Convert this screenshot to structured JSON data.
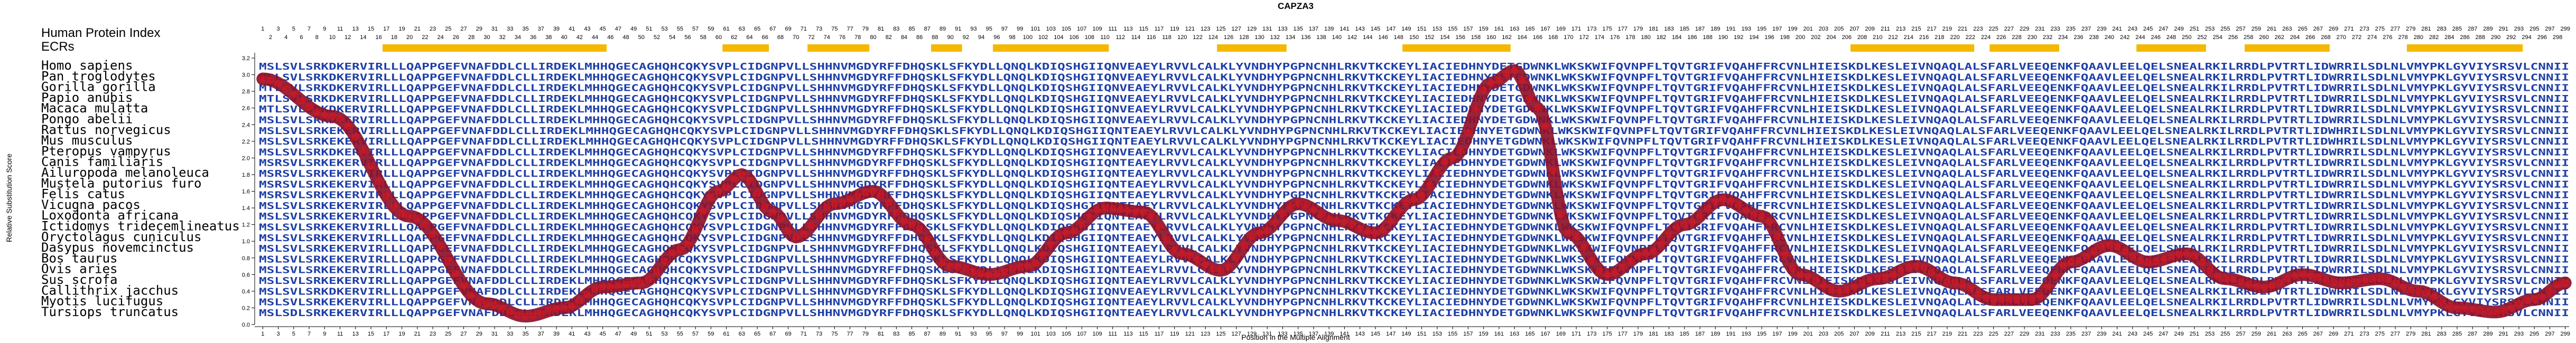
{
  "chart_data": {
    "type": "line",
    "title": "CAPZA3",
    "xlabel": "Position in the Multiple Alignment",
    "ylabel": "Relative Substitution Score",
    "ylim": [
      0,
      3.2
    ],
    "yticks": [
      0,
      0.2,
      0.4,
      0.6,
      0.8,
      1.0,
      1.2,
      1.4,
      1.6,
      1.8,
      2.0,
      2.2,
      2.4,
      2.6,
      2.8,
      3.0,
      3.2
    ],
    "xlim": [
      1,
      299
    ],
    "index_label": "Human Protein Index",
    "ecr_label": "ECRs",
    "ecr_color": "#f5b800",
    "line_color": "#8e1129",
    "marker_color": "#e8141c",
    "residue_color": "#1f3fa8",
    "ecrs": [
      [
        17,
        45
      ],
      [
        61,
        66
      ],
      [
        72,
        79
      ],
      [
        88,
        91
      ],
      [
        96,
        110
      ],
      [
        125,
        133
      ],
      [
        149,
        162
      ],
      [
        207,
        222
      ],
      [
        225,
        233
      ],
      [
        244,
        252
      ],
      [
        258,
        268
      ],
      [
        279,
        293
      ]
    ],
    "x": [
      1,
      10,
      20,
      30,
      35,
      40,
      45,
      50,
      55,
      60,
      63,
      67,
      70,
      75,
      80,
      85,
      90,
      95,
      100,
      105,
      110,
      115,
      120,
      125,
      130,
      135,
      140,
      145,
      150,
      155,
      160,
      163,
      166,
      170,
      175,
      180,
      185,
      190,
      195,
      200,
      205,
      210,
      215,
      220,
      225,
      230,
      235,
      240,
      245,
      250,
      255,
      260,
      265,
      270,
      275,
      280,
      285,
      290,
      295,
      299
    ],
    "values": [
      2.95,
      2.5,
      1.3,
      0.25,
      0.1,
      0.2,
      0.45,
      0.5,
      0.9,
      1.6,
      1.8,
      1.35,
      1.05,
      1.45,
      1.6,
      1.2,
      0.7,
      0.6,
      0.7,
      1.1,
      1.4,
      1.35,
      0.85,
      0.65,
      1.1,
      1.45,
      1.25,
      1.1,
      1.5,
      2.0,
      2.9,
      3.05,
      2.6,
      1.1,
      0.6,
      0.85,
      1.2,
      1.5,
      1.3,
      0.6,
      0.4,
      0.55,
      0.7,
      0.5,
      0.3,
      0.3,
      0.75,
      0.95,
      0.75,
      0.85,
      0.55,
      0.45,
      0.6,
      0.5,
      0.55,
      0.4,
      0.2,
      0.15,
      0.3,
      0.5
    ],
    "species": [
      "Homo sapiens",
      "Pan troglodytes",
      "Gorilla gorilla",
      "Papio anubis",
      "Macaca mulatta",
      "Pongo abelii",
      "Rattus norvegicus",
      "Mus musculus",
      "Pteropus vampyrus",
      "Canis familiaris",
      "Ailuropoda melanoleuca",
      "Mustela putorius furo",
      "Felis catus",
      "Vicugna pacos",
      "Loxodonta africana",
      "Ictidomys tridecemlineatus",
      "Oryctolagus cuniculus",
      "Dasypus novemcinctus",
      "Bos taurus",
      "Ovis aries",
      "Sus scrofa",
      "Callithrix jacchus",
      "Myotis lucifugus",
      "Tursiops truncatus"
    ],
    "sequence_rows": [
      "MSLSVLSRKDKERVIRLLLQAPPGEFVNAFDDLCLLIRDEKLMHHQGECAGHQHCQKYSVPLCIDGNPVLLSHHNVMGDYRFFDHQSKLSFKYDLLQNQLKDIQSHGIIQNVEAEYLRVVLCALKLYVNDHYPGPNCNHLRKVTKCKEYLIACIEDHNYDETGDWNKLWKSKWIFQVNPFLTQVTGRIFVQAHFFRCVNLHIEISKDLKESLEIVNQAQLALSFARLVEEQENKFQAAVLEELQELSNEALRKILRRDLPVTRTLIDWRRILSDLNLVMYPKLGYVIYSRSVLCNNII",
      "MSLSVLSRKDKERVIRLLLQAPPGEFVNAFDDLCLLIRDEKLMHHQGECAGHQHCQKYSVPLCIDGNPVLLSHHNVMGDYRFFDHQSKLSFKYDLLQNQLKDIQSHGIIQNVEAEYLRVVLCALKLYVNDHYPGPNCNHLRKVTKCKEYLIACIEDHNYDETGDWNKLWKSKWIFQVNPFLTQVTGRIFVQAHFFRCVNLHIEISKDLKESLEIVNQAQLALSFARLVEEQENKFQAAVLEELQELSNEALRKILRRDLPVTRTLIDWRRILSDLNLVMYPKLGYVIYSRSVLCNNII",
      "MTLSVLSRKDKERVIRLLLQAPPGEFVNAFDDLCLLIRDEKLMHHQGECAGHQHCQKYSVPLCIDGNPVLLSHHNVMGDYRFFDHQSKLSFKYDLLQNQLKDIQSHGIIQNVEAEYLRVVLCALKLYVNDHYPGPNCNHLRKVTKCKEYLIACIEDHNYDETGDWNKLWKSKWIFQVNPFLTQVTGRIFVQAHFFRCVNLHIEISKDLKESLEIVNQAQLALSFARLVEEQENKFQAAVLEELQELSNEALRKILRRDLPVTRTLIDWRRILSDLNLVMYPKLGYVIYSRSVLCNNII",
      "MTLSVLSRKDKERVIRLLLQAPPGEFVNAFDDLCLLIRDEKLMHHQGECAGHQHCQKYSVPLCIDGNPVLLSHHNVMGDYRFFDHQSKLSFKYDLLQNQLKDIQSHGIIQNVEAEYLRVVLCALKLYVNDHYPGPNCNHLRKVTKCKEYLIACIEDHNYDETGDWNKLWKSKWIFQVNPFLTQVTGRIFVQAHFFRCVNLHIEISKDLKESLEIVNQAQLALSFARLVEEQENKFQAAVLEELQELSNEALRKILRRDLPVTRTLIDWRRILSDLNLVMYPKLGYVIYSRSVLCNNII",
      "MTLSVLSRKDKERVIRLLLQAPPGEFVNAFDDLCLLIRDEKLMHHQGECAGHQHCQKYSVPLCIDGNPVLLSHHNVMGDYRFFDHQSKLSFKYDLLQNQLKDIQSHGIIQNVEAEYLRVVLCALKLYVNDHYPGPNCNHLRKVTKCKEYLIACIEDHNYDETGDWNKLWKSKWIFQVNPFLTQVTGRIFVQAHFFRCVNLHIEISKDLKESLEIVNQAQLALSFARLVEEQENKFQAAVLEELQELSNEALRKILRRDLPVTRTLIDWRRILSDLNLVMYPKLGYVIYSRSVLCNNII",
      "MSLSVLSRKDKERVIRLLLQAPPGEFVNAFDDLCLLIRDEKLMHHQGECAGHQHCQKYSVPLCIDGNPVLLSHHNVMGDYRFFDHQSKLSFKYDLLQNQLKDIQSHGIIQNVEAEYLRVVLCALKLYVNDHYPGPNCNHLRKVTKCKEYLIACIEDHNYDETGDWNKLWKSKWIFQVNPFLTQVTGRIFVQAHFFRCVNLHIEISKDLKESLEIVNQAQLALSFARLVEEQENKFQAAVLEELQELSNEALRKILRRDLPVTRTLIDWRRILSDLNLVMYPKLGYVIYSRSVLCNNII",
      "MSLSVLSRKEKERVIRLLLQAPPGEFVNAFDDLCLLIRDEKLMHHQGECAGHQHCQKYSVPLCIDGNPVLLSHHNVMGDYRFFDHQSKLSFKYDLLQNQLKDIQSHGIIQNTEAEYLRVVLCALKLYVNDHYPGPNCNHLRKVTKCKEYLIACIEDHNYETGDWNKLWKSKWIFQVNPFLTQVTGRIFVQAHFFRCVNLHIEISKDLKESLEIVNQAQLALSFARLVEEQENKFQAAVLEELQELSNEALRKILRRDLPVTRTLIDWHRILSDLNLVMYPKLGYVIYSRSVLCNNII",
      "MSLSVLSRKEKERVIRLLLQAPPGEFVNAFDDLCLLIRDEKLMHHQGECAGHQHCQKYSVPLCIDGNPVLLSHHNVMGDYRFFDHQSKLSFKYDLLQNQLKDIQSHGIIQNTEAEYLRVVLCALKLYVNDHYPGPNCNHLRKVTKCKEYLIACIEDHNYETGDWNKLWKSKWIFQVNPFLTQVTGRIFVQAHFFRCVNLHIEISKDLKESLEIVNQAQLALSFARLVEEQENKFQAAVLEELQELSNEALRKILRRDLPVTRTLIDWHRILSDLNLVMYPKLGYVIYSRSVLCNNII",
      "MSLSVLSRKDKERVIRLLLQAPPGEFVNAFDDLCLLIRDEKLMHHQGECAGHQHCQKYSVPLCIDGNPVLLSHHNVMGDYRFFDHQSKLSFKYDLLQNQLKDIQSHGIIQNVEAEYLRVVLCALKLYVNDHYPGPNCNHLRKVTKCKEYLIACIEDHNYDETGDWNKLWKSKWIFQVNPFLTQVTGRIFVQAHFFRCVNLHIEISKDLKESLEIVNQAQLALSFARLVEEQENKFQAAVLEELQELSNEALRKILRRDLPVTRTLIDWRRILSDLNLVMYPKLGYVIYSRSVLCNNII",
      "MSRSVLSRKEKERVIRLLLQAPPGEFVNAFDDLCLLIRDEKLMHHQGECAGHQHCQKYSVPLCIDGNPVLLSHHNVMGDYRFFDHQSKLSFKYDLLQNQLKDIQSHGIIQNTEAEYLRVVLCALKLYVNDHYPGPNCNHLRKVTKCKEYLIACIEDHNYDETGDWNKLWKSKWIFQVNPFLTQVTGRIFVQAHFFRCVNLHIEISKDLKESLEIVNQAQLALSFARLVEEQENKFQAAVLEELQELSNEALRKILRRDLPVTRTLIDWRRILSDLNLVMYPKLGYVIYSRSVLCNNII",
      "MSRSVLSRKEKERVIRLLLQAPPGEFVNAFDDLCLLIRDEKLMHHQGECAGHQHCQKYSVPLCIDGNPVLLSHHNVMGDYRFFDHQSKLSFKYDLLQNQLKDIQSHGIIQNTEAEYLRVVLCALKLYVNDHYPGPNCNHLRKVTKCKEYLIACIEDHNYDETGDWNKLWKSKWIFQVNPFLTQVTGRIFVQAHFFRCVNLHIEISKDLKESLEIVNQAQLALSFARLVEEQENKFQAAVLEELQELSNEALRKILRRDLPVTRTLIDWRRILSDLNLVMYPKLGYVIYSRSVLCNNII",
      "MSRSVLSRKEKERVIRLLLQAPPGEFVNAFDDLCLLIRDEKLMHHQGECAGHQHCQKYSVPLCIDGNPVLLSHHNVMGDYRFFDHQSKLSFKYDLLQNQLKDIQSHGIIQNTEAEYLRVVLCALKLYVNDHYPGPNCNHLRKVTKCKEYLIACIEDHNYDETGDWNKLWKSKWIFQVNPFLTQVTGRIFVQAHFFRCVNLHIEISKDLKESLEIVNQAQLALSFARLVEEQENKFQAAVLEELQELSNEALRKILRRDLPVTRTLIDWRRILSDLNLVMYPKLGYVIYSRSVLCNNII",
      "MSRSVLSRKEKERVIRLLLQAPPGEFVNAFDDLCLLIRDEKLMHHQGECAGHQHCQKYSVPLCIDGNPVLLSHHNVMGDYRFFDHQSKLSFKYDLLQNQLKDIQSHGIIQNTEAEYLRVVLCALKLYVNDHYPGPNCNHLRKVTKCKEYLIACIEDHNYDETGDWNKLWKSKWIFQVNPFLTQVTGRIFVQAHFFRCVNLHIEISKDLKESLEIVNQAQLALSFARLVEEQENKFQAAVLEELQELSNEALRKILRRDLPVTRTLIDWRRILSDLNLVMYPKLGYVIYSRSVLCNNII",
      "MSLSVLSRKEKERVIRLLLQAPPGEFVNAFDDLCLLIRDEKLMHHQGECAGHQHCQKYSVPLCIDGNPVLLSHHNVMGDYRFFDHQSKLSFKYDLLQNQLKDIQSHGIIQNTEAEYLRVVLCALKLYVNDHYPGPNCNHLRKVTKCKEYLIACIEDHNYDETGDWNKLWKSKWIFQVNPFLTQVTGRIFVQAHFFRCVNLHIEISKDLKESLEIVNQAQLALSFARLVEEQENKFQAAVLEELQELSNEALRKILRRDLPVTRTLIDWRRILSDLNLVMYPKLGYVIYSRSVLCNNII",
      "MSLSVLSRKEKERVIRLLLQAPPGEFVNAFDDLCLLIRDEKLMHHQGECAGHQHCQKYSVPLCIDGNPVLLSHHNVMGDYRFFDHQSKLSFKYDLLQNQLKDIQSHGIIQNTEAEYLRVVLCALKLYVNDHYPGPNCNHLRKVTKCKEYLIACIEDHNYDETGDWNKLWKSKWIFQVNPFLTQVTGRIFVQAHFFRCVNLHIEISKDLKESLEIVNQAQLALSFARLVEEQENKFQAAVLEELQELSNEALRKILRRDLPVTRTLIDWRRILSDLNLVMYPKLGYVIYSRSVLCNNII",
      "MSLSVLSRKEKERVIRLLLQAPPGEFVNAFDDLCLLIRDEKLMHHQGECAGHQHCQKYSVPLCIDGNPVLLSHHNVMGDYRFFDHQSKLSFKYDLLQNQLKDIQSHGIIQNTEAEYLRVVLCALKLYVNDHYPGPNCNHLRKVTKCKEYLIACIEDHNYDETGDWNKLWKSKWIFQVNPFLTQVTGRIFVQAHFFRCVNLHIEISKDLKESLEIVNQAQLALSFARLVEEQENKFQAAVLEELQELSNEALRKILRRDLPVTRTLIDWRRILSDLNLVMYPKLGYVIYSRSVLCNNII",
      "MSLSVLSRKEKERVIRLLLQAPPGEFVNAFDDLCLLIRDEKLMHHQGECAGHQHCQKYSVPLCIDGNPVLLSHHNVMGDYRFFDHQSKLSFKYDLLQNQLKDIQSHGIIQNTEAEYLRVVLCALKLYVNDHYPGPNCNHLRKVTKCKEYLIACIEDHNYDETGDWNKLWKSKWIFQVNPFLTQVTGRIFVQAHFFRCVNLHIEISKDLKESLEIVNQAQLALSFARLVEEQENKFQAAVLEELQELSNEALRKILRRDLPVTRTLIDWRRILSDLNLVMYPKLGYVIYSRSVLCNNII",
      "MSLSVLSRKEKERVIRLLLQAPPGEFVNAFDDLCLLIRDEKLMHHQGECAGHQHCQKYSVPLCIDGNPVLLSHHNVMGDYRFFDHQSKLSFKYDLLQNQLKDIQSHGIIQNTEAEYLRVVLCALKLYVNDHYPGPNCNHLRKVTKCKEYLIACIEDHNYDETGDWNKLWKSKWIFQVNPFLTQVTGRIFVQAHFFRCVNLHIEISKDLKESLEIVNQAQLALSFARLVEEQENKFQAAVLEELQELSNEALRKILRRDLPVTRTLIDWRRILSDLNLVMYPKLGYVIYSRSVLCNNII",
      "MSLSVLSRKEKERVIRLLLQAPPGEFVNAFDDLCLLIRDEKLMHHQGECAGHQHCQKYSVPLCIDGNPVLLSHHNVMGDYRFFDHQSKLSFKYDLLQNQLKDIQSHGIIQNTEAEYLRVVLCALKLYVNDHYPGPNCNHLRKVTKCKEYLIACIEDHNYDETGDWNKLWKSKWIFQVNPFLTQVTGRIFVQAHFFRCVNLHIEISKDLKESLEIVNQAQLALSFARLVEEQENKFQAAVLEELQELSNEALRKILRRDLPVTRTLIDWRRILSDLNLVMYPKLGYVIYSRSVLCNNII",
      "MSLSVLSRKEKERVIRLLLQAPPGEFVNAFDDLCLLIRDEKLMHHQGECAGHQHCQKYSVPLCIDGNPVLLSHHNVMGDYRFFDHQSKLSFKYDLLQNQLKDIQSHGIIQNTEAEYLRVVLCALKLYVNDHYPGPNCNHLRKVTKCKEYLIACIEDHNYDETGDWNKLWKSKWIFQVNPFLTQVTGRIFVQAHFFRCVNLHIEISKDLKESLEIVNQAQLALSFARLVEEQENKFQAAVLEELQELSNEALRKILRRDLPVTRTLIDWRRILSDLNLVMYPKLGYVIYSRSVLCNNII",
      "MSLSVLSRKEKERVIRLLLQAPPGEFVNAFDDLCLLIRDEKLMHHQGECAGHQHCQKYSVPLCIDGNPVLLSHHNVMGDYRFFDHQSKLSFKYDLLQNQLKDIQSHGIIQNTEAEYLRVVLCALKLYVNDHYPGPNCNHLRKVTKCKEYLIACIEDHNYDETGDWNKLWKSKWIFQVNPFLTQVTGRIFVQAHFFRCVNLHIEISKDLKESLEIVNQAQLALSFARLVEEQENKFQAAVLEELQELSNEALRKILRRDLPVTRTLIDWRRILSDLNLVMYPKLGYVIYSRSVLCNNII",
      "MSLSVLSRKDKERVIRLLLQAPPGEFVNAFDDLCLLIRDEKLMHHQGECAGHQHCQKYSVPLCIDGNPVLLSHHNVMGDYRFFDHQSKLSFKYDLLQNQLKDIQSHGIIQNVEAEYLRVVLCALKLYVNDHYPGPNCNHLRKVTKCKEYLIACIEDHNYDETGDWNKLWKSKWIFQVNPFLTQVTGRIFVQAHFFRCVNLHIEISKDLKESLEIVNQAQLALSFARLVEEQENKFQAAVLEELQELSNEALRKILRRDLPVTRTLIDWRRILSDLNLVMYPKLGYVIYSRSVLCNNII",
      "MSLSVLSRKEKERVIRLLLQAPPGEFVNAFDDLCLLIRDEKLMHHQGECAGHQHCQKYSVPLCIDGNPVLLSHHNVMGDYRFFDHQSKLSFKYDLLQNQLKDIQSHGIIQNTEAEYLRVVLCALKLYVNDHYPGPNCNHLRKVTKCKEYLIACIEDHNYDETGDWNKLWKSKWIFQVNPFLTQVTGRIFVQAHFFRCVNLHIEISKDLKESLEIVNQAQLALSFARLVEEQENKFQAAVLEELQELSNEALRKILRRDLPVTRTLIDWRRILSDLNLVMYPKLGYVIYSRSVLCNNII",
      "MSLSDLSRKEKERVIRLLLQAPPGEFVNAFDDLCLLIRDEKLMHHQGECAGHQHCQKYSVPLCIDGNPVLLSHHNVMGDYRFFDHQSKLSFKYDLLQNQLKDIQSHGIIQNTEAEYLRVVLCALKLYVNDHYPGPNCNHLRKVTKCKEYLIACIEDHNYDETGDWNKLWKSKWIFQVNPFLTQVTGRIFVQAHFFRCVNLHIEISKDLKESLEIVNQAQLALSFARLVEEQENKFQAAVLEELQELSNEALRKILRRDLPVTRTLIDWRRILSDLNLVMYPKLGYVIYSRSVLCNNII"
    ]
  }
}
